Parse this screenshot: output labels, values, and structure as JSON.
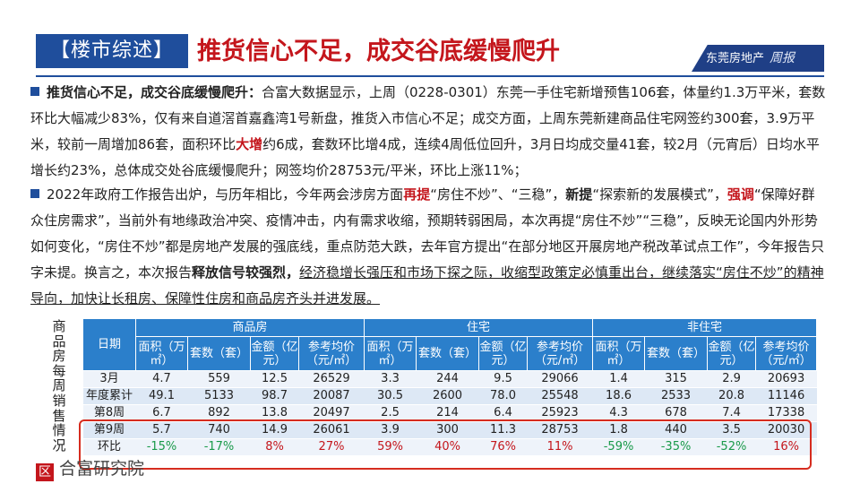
{
  "header": {
    "tag": "【楼市综述】",
    "title": "推货信心不足，成交谷底缓慢爬升",
    "brand": "东莞房地产",
    "brand_script": "周报"
  },
  "para1": {
    "lead": "推货信心不足，成交谷底缓慢爬升：",
    "text_a": "合富大数据显示，上周（0228-0301）东莞一手住宅新增预售106套，体量约1.3万平米，套数环比大幅减少83%，仅有来自道滘首嘉鑫湾1号新盘，推货入市信心不足；成交方面，上周东莞新建商品住宅网签约300套，3.9万平米，较前一周增加86套，面积环比",
    "red_a": "大增",
    "text_b": "约6成，套数环比增4成，连续4周低位回升，3月日均成交量41套，较2月（元宵后）日均水平增长约23%，总体成交处谷底缓慢爬升；网签均价28753元/平米，环比上涨11%；"
  },
  "para2": {
    "text_a": "2022年政府工作报告出炉，与历年相比，今年两会涉房方面",
    "red_a": "再提",
    "text_b": "“房住不炒”、“三稳”，",
    "bold_a": "新提",
    "text_c": "“探索新的发展模式”，",
    "red_b": "强调",
    "text_d": "“保障好群众住房需求”，当前外有地缘政治冲突、疫情冲击，内有需求收缩，预期转弱困局，本次再提“房住不炒”“三稳”，反映无论国内外形势如何变化，“房住不炒”都是房地产发展的强底线，重点防范大跌，去年官方提出“在部分地区开展房地产税改革试点工作”，今年报告只字未提。换言之，本次报告",
    "bold_b": "释放信号较强烈，",
    "ul_text": "经济稳增长强压和市场下探之际，收缩型政策定必慎重出台，继续落实“房住不炒”的精神导向，加快让长租房、保障性住房和商品房齐头并进发展。"
  },
  "table": {
    "side_label": "商品房每周销售情况",
    "date_header": "日期",
    "groups": [
      "商品房",
      "住宅",
      "非住宅"
    ],
    "subheads": [
      "面积（万㎡）",
      "套数（套）",
      "金额（亿元）",
      "参考均价（元/㎡）",
      "面积（万㎡）",
      "套数（套）",
      "金额（亿元）",
      "参考均价（元/㎡）",
      "面积（万㎡）",
      "套数（套）",
      "金额（亿元）",
      "参考均价（元/㎡）"
    ],
    "rows": [
      {
        "label": "3月",
        "cells": [
          "4.7",
          "559",
          "12.5",
          "26529",
          "3.3",
          "244",
          "9.5",
          "29066",
          "1.4",
          "315",
          "2.9",
          "20693"
        ]
      },
      {
        "label": "年度累计",
        "cells": [
          "49.1",
          "5133",
          "98.7",
          "20087",
          "30.5",
          "2600",
          "78.0",
          "25548",
          "18.6",
          "2533",
          "20.8",
          "11146"
        ]
      },
      {
        "label": "第8周",
        "cells": [
          "6.7",
          "892",
          "13.8",
          "20497",
          "2.5",
          "214",
          "6.4",
          "25923",
          "4.3",
          "678",
          "7.4",
          "17338"
        ]
      },
      {
        "label": "第9周",
        "cells": [
          "5.7",
          "740",
          "14.9",
          "26061",
          "3.9",
          "300",
          "11.3",
          "28753",
          "1.8",
          "440",
          "3.5",
          "20030"
        ]
      },
      {
        "label": "环比",
        "cells": [
          "-15%",
          "-17%",
          "8%",
          "27%",
          "59%",
          "40%",
          "76%",
          "11%",
          "-59%",
          "-35%",
          "-52%",
          "16%"
        ]
      }
    ]
  },
  "footer": {
    "logo_mark": "区",
    "logo_text": "合富研究院"
  },
  "colors": {
    "brand_blue": "#1f4e9c",
    "accent_red": "#c4161c",
    "table_header": "#2b7fcb",
    "negative_green": "#1a9a4a"
  }
}
